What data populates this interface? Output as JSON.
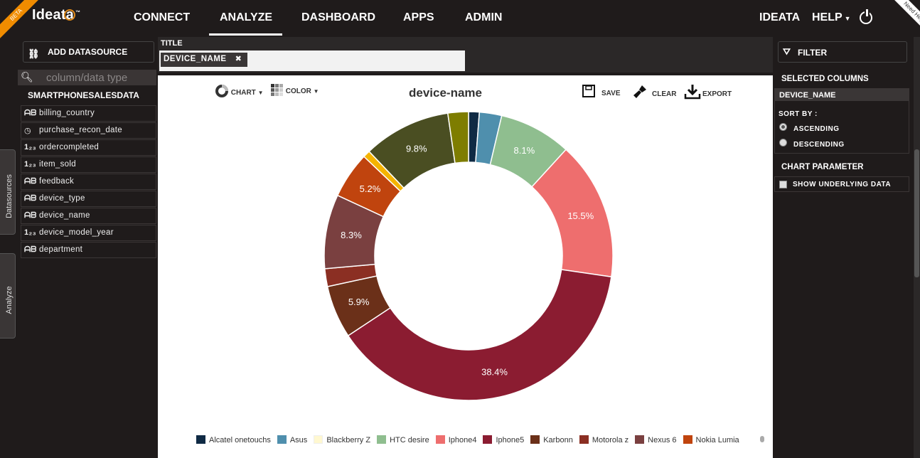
{
  "brand": {
    "name": "Ideata",
    "tm": "™",
    "beta": "BETA",
    "need_help": "Need Help?"
  },
  "nav": {
    "items": [
      "CONNECT",
      "ANALYZE",
      "DASHBOARD",
      "APPS",
      "ADMIN"
    ],
    "active": "ANALYZE",
    "user": "IDEATA",
    "help": "HELP"
  },
  "left": {
    "add_datasource": "ADD DATASOURCE",
    "search_placeholder": "column/data type",
    "datasource": "SMARTPHONESALESDATA",
    "columns": [
      {
        "name": "billing_country",
        "type": "text"
      },
      {
        "name": "purchase_recon_date",
        "type": "date"
      },
      {
        "name": "ordercompleted",
        "type": "number"
      },
      {
        "name": "item_sold",
        "type": "number"
      },
      {
        "name": "feedback",
        "type": "text"
      },
      {
        "name": "device_type",
        "type": "text"
      },
      {
        "name": "device_name",
        "type": "text"
      },
      {
        "name": "device_model_year",
        "type": "number"
      },
      {
        "name": "department",
        "type": "text"
      }
    ],
    "tab_datasources": "Datasources",
    "tab_analyze": "Analyze"
  },
  "title_area": {
    "label": "TITLE",
    "chip": "DEVICE_NAME",
    "chip_close": "✖"
  },
  "toolbar": {
    "chart": "CHART",
    "color": "COLOR",
    "save": "SAVE",
    "clear": "CLEAR",
    "export": "EXPORT"
  },
  "chart_data": {
    "type": "pie",
    "title": "device-name",
    "donut": true,
    "slices": [
      {
        "name": "Alcatel onetouchs",
        "value": 1.2,
        "color": "#0f2a44"
      },
      {
        "name": "Asus",
        "value": 2.5,
        "color": "#4f8fad"
      },
      {
        "name": "HTC desire",
        "value": 8.1,
        "color": "#8fbe8f"
      },
      {
        "name": "Iphone4",
        "value": 15.5,
        "color": "#ee6e6e"
      },
      {
        "name": "Iphone5",
        "value": 38.4,
        "color": "#8b1c31"
      },
      {
        "name": "Karbonn",
        "value": 5.9,
        "color": "#6b3019"
      },
      {
        "name": "Motorola z",
        "value": 2.0,
        "color": "#8b2f23"
      },
      {
        "name": "Nexus 6",
        "value": 8.3,
        "color": "#7a4040"
      },
      {
        "name": "Nokia Lumia",
        "value": 5.2,
        "color": "#c0440e"
      },
      {
        "name": "",
        "value": 0.8,
        "color": "#f5b400"
      },
      {
        "name": "",
        "value": 9.8,
        "color": "#4a4e22"
      },
      {
        "name": "",
        "value": 2.3,
        "color": "#7e7d00"
      }
    ],
    "labels_shown": [
      "8.1%",
      "15.5%",
      "38.4%",
      "5.9%",
      "8.3%",
      "5.2%",
      "9.8%"
    ],
    "legend": [
      {
        "name": "Alcatel onetouchs",
        "color": "#0f2a44"
      },
      {
        "name": "Asus",
        "color": "#4f8fad"
      },
      {
        "name": "Blackberry Z",
        "color": "#fff8d0"
      },
      {
        "name": "HTC desire",
        "color": "#8fbe8f"
      },
      {
        "name": "Iphone4",
        "color": "#ee6e6e"
      },
      {
        "name": "Iphone5",
        "color": "#8b1c31"
      },
      {
        "name": "Karbonn",
        "color": "#6b3019"
      },
      {
        "name": "Motorola z",
        "color": "#8b2f23"
      },
      {
        "name": "Nexus 6",
        "color": "#7a4040"
      },
      {
        "name": "Nokia Lumia",
        "color": "#c0440e"
      }
    ]
  },
  "right": {
    "filter": "FILTER",
    "selected_columns": "SELECTED COLUMNS",
    "selected": "DEVICE_NAME",
    "sort_by": "SORT BY :",
    "ascending": "ASCENDING",
    "descending": "DESCENDING",
    "sort_value": "ASCENDING",
    "chart_parameter": "CHART PARAMETER",
    "show_underlying": "SHOW UNDERLYING DATA"
  }
}
